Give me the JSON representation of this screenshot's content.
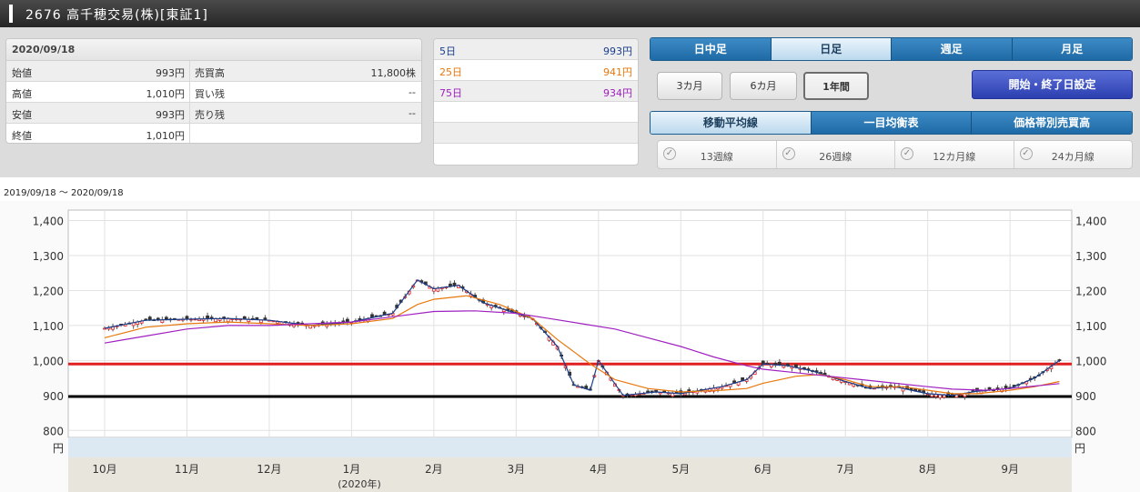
{
  "title": "2676 高千穂交易(株)[東証1]",
  "ohlc": {
    "date": "2020/09/18",
    "rows": [
      {
        "label": "始値",
        "value": "993円",
        "label2": "売買高",
        "value2": "11,800株"
      },
      {
        "label": "高値",
        "value": "1,010円",
        "label2": "買い残",
        "value2": "--"
      },
      {
        "label": "安値",
        "value": "993円",
        "label2": "売り残",
        "value2": "--"
      },
      {
        "label": "終値",
        "value": "1,010円",
        "label2": "",
        "value2": ""
      }
    ]
  },
  "moving_averages": [
    {
      "label": "5日",
      "value": "993円",
      "color": "#1a3e8c"
    },
    {
      "label": "25日",
      "value": "941円",
      "color": "#e8780c"
    },
    {
      "label": "75日",
      "value": "934円",
      "color": "#a020c0"
    }
  ],
  "period_tabs": [
    "日中足",
    "日足",
    "週足",
    "月足"
  ],
  "period_active": 1,
  "range_buttons": [
    "3カ月",
    "6カ月",
    "1年間"
  ],
  "range_active": 2,
  "date_setting_label": "開始・終了日設定",
  "indicator_tabs": [
    "移動平均線",
    "一目均衡表",
    "価格帯別売買高"
  ],
  "indicator_active": 0,
  "checks": [
    {
      "label": "13週線",
      "icon": "check-icon"
    },
    {
      "label": "26週線",
      "icon": "check-icon"
    },
    {
      "label": "12カ月線",
      "icon": "check-icon"
    },
    {
      "label": "24カ月線",
      "icon": "check-icon"
    }
  ],
  "date_range": "2019/09/18 〜 2020/09/18",
  "chart_data": {
    "type": "candlestick",
    "y_ticks": [
      "1,400",
      "1,300",
      "1,200",
      "1,100",
      "1,000",
      "900",
      "800"
    ],
    "y_unit": "円",
    "ylim": [
      780,
      1430
    ],
    "x_labels": [
      "10月",
      "11月",
      "12月",
      "1月",
      "2月",
      "3月",
      "4月",
      "5月",
      "6月",
      "7月",
      "8月",
      "9月"
    ],
    "year_label": "(2020年)",
    "horizontal_lines": [
      {
        "value": 990,
        "color": "#e02020"
      },
      {
        "value": 897,
        "color": "#000000"
      }
    ],
    "series": [
      {
        "name": "5日",
        "color": "#1a3e8c",
        "points": [
          [
            0,
            1092
          ],
          [
            0.5,
            1115
          ],
          [
            1,
            1118
          ],
          [
            1.5,
            1120
          ],
          [
            2,
            1115
          ],
          [
            2.5,
            1100
          ],
          [
            3,
            1110
          ],
          [
            3.5,
            1135
          ],
          [
            3.8,
            1230
          ],
          [
            4,
            1205
          ],
          [
            4.3,
            1215
          ],
          [
            4.6,
            1165
          ],
          [
            5,
            1135
          ],
          [
            5.2,
            1120
          ],
          [
            5.5,
            1040
          ],
          [
            5.7,
            930
          ],
          [
            5.9,
            915
          ],
          [
            6,
            1000
          ],
          [
            6.3,
            900
          ],
          [
            6.7,
            910
          ],
          [
            7,
            905
          ],
          [
            7.5,
            925
          ],
          [
            7.8,
            945
          ],
          [
            8,
            990
          ],
          [
            8.3,
            985
          ],
          [
            8.6,
            970
          ],
          [
            9,
            940
          ],
          [
            9.3,
            920
          ],
          [
            9.6,
            925
          ],
          [
            10,
            905
          ],
          [
            10.3,
            900
          ],
          [
            10.6,
            912
          ],
          [
            11,
            920
          ],
          [
            11.3,
            950
          ],
          [
            11.6,
            1000
          ]
        ]
      },
      {
        "name": "25日",
        "color": "#e8780c",
        "points": [
          [
            0,
            1065
          ],
          [
            0.5,
            1095
          ],
          [
            1,
            1105
          ],
          [
            1.5,
            1110
          ],
          [
            2,
            1105
          ],
          [
            2.5,
            1100
          ],
          [
            3,
            1105
          ],
          [
            3.5,
            1120
          ],
          [
            3.8,
            1160
          ],
          [
            4,
            1175
          ],
          [
            4.4,
            1185
          ],
          [
            4.8,
            1160
          ],
          [
            5.2,
            1120
          ],
          [
            5.5,
            1060
          ],
          [
            5.9,
            990
          ],
          [
            6.2,
            945
          ],
          [
            6.6,
            920
          ],
          [
            7,
            910
          ],
          [
            7.5,
            915
          ],
          [
            7.8,
            920
          ],
          [
            8,
            935
          ],
          [
            8.4,
            955
          ],
          [
            8.7,
            960
          ],
          [
            9,
            945
          ],
          [
            9.3,
            925
          ],
          [
            9.7,
            925
          ],
          [
            10,
            915
          ],
          [
            10.3,
            905
          ],
          [
            10.6,
            905
          ],
          [
            11,
            915
          ],
          [
            11.3,
            925
          ],
          [
            11.6,
            940
          ]
        ]
      },
      {
        "name": "75日",
        "color": "#a020c0",
        "points": [
          [
            0,
            1050
          ],
          [
            0.5,
            1070
          ],
          [
            1,
            1090
          ],
          [
            1.5,
            1100
          ],
          [
            2,
            1100
          ],
          [
            2.5,
            1105
          ],
          [
            3,
            1110
          ],
          [
            3.5,
            1125
          ],
          [
            4,
            1140
          ],
          [
            4.5,
            1142
          ],
          [
            5,
            1135
          ],
          [
            5.4,
            1120
          ],
          [
            5.8,
            1105
          ],
          [
            6.2,
            1090
          ],
          [
            6.6,
            1065
          ],
          [
            7,
            1040
          ],
          [
            7.4,
            1010
          ],
          [
            7.8,
            985
          ],
          [
            8,
            975
          ],
          [
            8.4,
            965
          ],
          [
            8.8,
            955
          ],
          [
            9.2,
            945
          ],
          [
            9.6,
            935
          ],
          [
            10,
            925
          ],
          [
            10.3,
            918
          ],
          [
            10.7,
            915
          ],
          [
            11,
            920
          ],
          [
            11.3,
            927
          ],
          [
            11.6,
            934
          ]
        ]
      }
    ]
  }
}
